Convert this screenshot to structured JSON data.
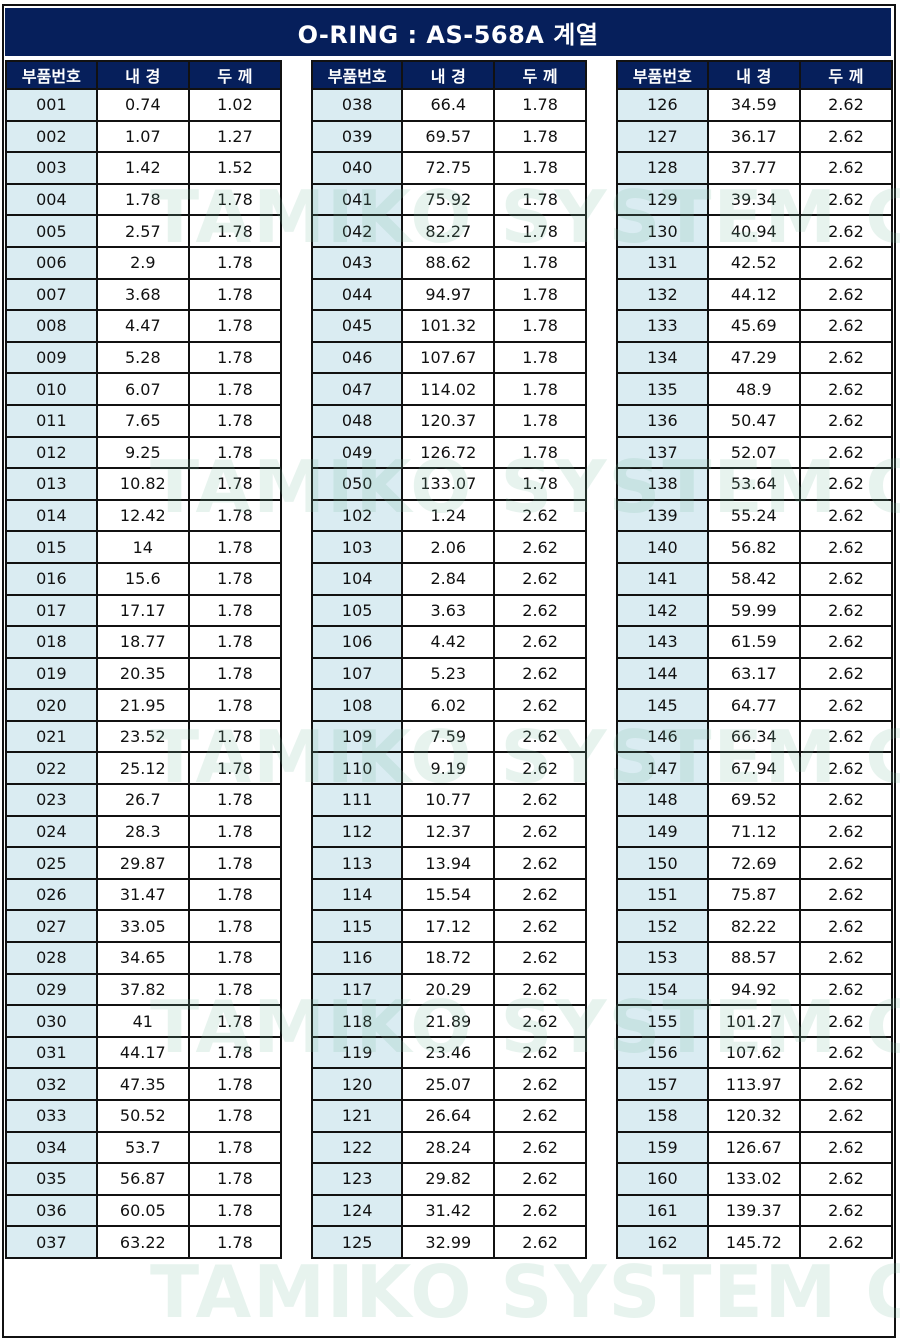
{
  "title": "O-RING : AS-568A 계열",
  "headers": [
    "부품번호",
    "내 경",
    "두 께"
  ],
  "watermark": "TAMIKO SYSTEM Co.,Ltd.",
  "colors": {
    "header_bg": "#061f5b",
    "part_col_bg": "#daecf2",
    "border": "#111111"
  },
  "tables": [
    {
      "rows": [
        [
          "001",
          "0.74",
          "1.02"
        ],
        [
          "002",
          "1.07",
          "1.27"
        ],
        [
          "003",
          "1.42",
          "1.52"
        ],
        [
          "004",
          "1.78",
          "1.78"
        ],
        [
          "005",
          "2.57",
          "1.78"
        ],
        [
          "006",
          "2.9",
          "1.78"
        ],
        [
          "007",
          "3.68",
          "1.78"
        ],
        [
          "008",
          "4.47",
          "1.78"
        ],
        [
          "009",
          "5.28",
          "1.78"
        ],
        [
          "010",
          "6.07",
          "1.78"
        ],
        [
          "011",
          "7.65",
          "1.78"
        ],
        [
          "012",
          "9.25",
          "1.78"
        ],
        [
          "013",
          "10.82",
          "1.78"
        ],
        [
          "014",
          "12.42",
          "1.78"
        ],
        [
          "015",
          "14",
          "1.78"
        ],
        [
          "016",
          "15.6",
          "1.78"
        ],
        [
          "017",
          "17.17",
          "1.78"
        ],
        [
          "018",
          "18.77",
          "1.78"
        ],
        [
          "019",
          "20.35",
          "1.78"
        ],
        [
          "020",
          "21.95",
          "1.78"
        ],
        [
          "021",
          "23.52",
          "1.78"
        ],
        [
          "022",
          "25.12",
          "1.78"
        ],
        [
          "023",
          "26.7",
          "1.78"
        ],
        [
          "024",
          "28.3",
          "1.78"
        ],
        [
          "025",
          "29.87",
          "1.78"
        ],
        [
          "026",
          "31.47",
          "1.78"
        ],
        [
          "027",
          "33.05",
          "1.78"
        ],
        [
          "028",
          "34.65",
          "1.78"
        ],
        [
          "029",
          "37.82",
          "1.78"
        ],
        [
          "030",
          "41",
          "1.78"
        ],
        [
          "031",
          "44.17",
          "1.78"
        ],
        [
          "032",
          "47.35",
          "1.78"
        ],
        [
          "033",
          "50.52",
          "1.78"
        ],
        [
          "034",
          "53.7",
          "1.78"
        ],
        [
          "035",
          "56.87",
          "1.78"
        ],
        [
          "036",
          "60.05",
          "1.78"
        ],
        [
          "037",
          "63.22",
          "1.78"
        ]
      ]
    },
    {
      "rows": [
        [
          "038",
          "66.4",
          "1.78"
        ],
        [
          "039",
          "69.57",
          "1.78"
        ],
        [
          "040",
          "72.75",
          "1.78"
        ],
        [
          "041",
          "75.92",
          "1.78"
        ],
        [
          "042",
          "82.27",
          "1.78"
        ],
        [
          "043",
          "88.62",
          "1.78"
        ],
        [
          "044",
          "94.97",
          "1.78"
        ],
        [
          "045",
          "101.32",
          "1.78"
        ],
        [
          "046",
          "107.67",
          "1.78"
        ],
        [
          "047",
          "114.02",
          "1.78"
        ],
        [
          "048",
          "120.37",
          "1.78"
        ],
        [
          "049",
          "126.72",
          "1.78"
        ],
        [
          "050",
          "133.07",
          "1.78"
        ],
        [
          "102",
          "1.24",
          "2.62"
        ],
        [
          "103",
          "2.06",
          "2.62"
        ],
        [
          "104",
          "2.84",
          "2.62"
        ],
        [
          "105",
          "3.63",
          "2.62"
        ],
        [
          "106",
          "4.42",
          "2.62"
        ],
        [
          "107",
          "5.23",
          "2.62"
        ],
        [
          "108",
          "6.02",
          "2.62"
        ],
        [
          "109",
          "7.59",
          "2.62"
        ],
        [
          "110",
          "9.19",
          "2.62"
        ],
        [
          "111",
          "10.77",
          "2.62"
        ],
        [
          "112",
          "12.37",
          "2.62"
        ],
        [
          "113",
          "13.94",
          "2.62"
        ],
        [
          "114",
          "15.54",
          "2.62"
        ],
        [
          "115",
          "17.12",
          "2.62"
        ],
        [
          "116",
          "18.72",
          "2.62"
        ],
        [
          "117",
          "20.29",
          "2.62"
        ],
        [
          "118",
          "21.89",
          "2.62"
        ],
        [
          "119",
          "23.46",
          "2.62"
        ],
        [
          "120",
          "25.07",
          "2.62"
        ],
        [
          "121",
          "26.64",
          "2.62"
        ],
        [
          "122",
          "28.24",
          "2.62"
        ],
        [
          "123",
          "29.82",
          "2.62"
        ],
        [
          "124",
          "31.42",
          "2.62"
        ],
        [
          "125",
          "32.99",
          "2.62"
        ]
      ]
    },
    {
      "rows": [
        [
          "126",
          "34.59",
          "2.62"
        ],
        [
          "127",
          "36.17",
          "2.62"
        ],
        [
          "128",
          "37.77",
          "2.62"
        ],
        [
          "129",
          "39.34",
          "2.62"
        ],
        [
          "130",
          "40.94",
          "2.62"
        ],
        [
          "131",
          "42.52",
          "2.62"
        ],
        [
          "132",
          "44.12",
          "2.62"
        ],
        [
          "133",
          "45.69",
          "2.62"
        ],
        [
          "134",
          "47.29",
          "2.62"
        ],
        [
          "135",
          "48.9",
          "2.62"
        ],
        [
          "136",
          "50.47",
          "2.62"
        ],
        [
          "137",
          "52.07",
          "2.62"
        ],
        [
          "138",
          "53.64",
          "2.62"
        ],
        [
          "139",
          "55.24",
          "2.62"
        ],
        [
          "140",
          "56.82",
          "2.62"
        ],
        [
          "141",
          "58.42",
          "2.62"
        ],
        [
          "142",
          "59.99",
          "2.62"
        ],
        [
          "143",
          "61.59",
          "2.62"
        ],
        [
          "144",
          "63.17",
          "2.62"
        ],
        [
          "145",
          "64.77",
          "2.62"
        ],
        [
          "146",
          "66.34",
          "2.62"
        ],
        [
          "147",
          "67.94",
          "2.62"
        ],
        [
          "148",
          "69.52",
          "2.62"
        ],
        [
          "149",
          "71.12",
          "2.62"
        ],
        [
          "150",
          "72.69",
          "2.62"
        ],
        [
          "151",
          "75.87",
          "2.62"
        ],
        [
          "152",
          "82.22",
          "2.62"
        ],
        [
          "153",
          "88.57",
          "2.62"
        ],
        [
          "154",
          "94.92",
          "2.62"
        ],
        [
          "155",
          "101.27",
          "2.62"
        ],
        [
          "156",
          "107.62",
          "2.62"
        ],
        [
          "157",
          "113.97",
          "2.62"
        ],
        [
          "158",
          "120.32",
          "2.62"
        ],
        [
          "159",
          "126.67",
          "2.62"
        ],
        [
          "160",
          "133.02",
          "2.62"
        ],
        [
          "161",
          "139.37",
          "2.62"
        ],
        [
          "162",
          "145.72",
          "2.62"
        ]
      ]
    }
  ]
}
